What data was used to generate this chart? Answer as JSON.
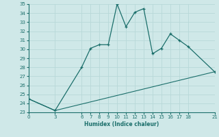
{
  "xlabel": "Humidex (Indice chaleur)",
  "ylabel": "",
  "bg_color": "#cfe8e8",
  "grid_color": "#b8d8d8",
  "line_color": "#1a6e6a",
  "ylim": [
    23,
    35
  ],
  "xlim": [
    0,
    21
  ],
  "yticks": [
    23,
    24,
    25,
    26,
    27,
    28,
    29,
    30,
    31,
    32,
    33,
    34,
    35
  ],
  "xticks": [
    0,
    3,
    6,
    7,
    8,
    9,
    10,
    11,
    12,
    13,
    14,
    15,
    16,
    17,
    18,
    21
  ],
  "line1_x": [
    0,
    3,
    6,
    7,
    8,
    9,
    10,
    11,
    12,
    13,
    14,
    15,
    16,
    17,
    18,
    21
  ],
  "line1_y": [
    24.5,
    23.2,
    28.0,
    30.1,
    30.5,
    30.5,
    35.0,
    32.5,
    34.1,
    34.5,
    29.5,
    30.1,
    31.7,
    31.0,
    30.3,
    27.5
  ],
  "line2_x": [
    0,
    3,
    21
  ],
  "line2_y": [
    24.5,
    23.2,
    27.5
  ]
}
